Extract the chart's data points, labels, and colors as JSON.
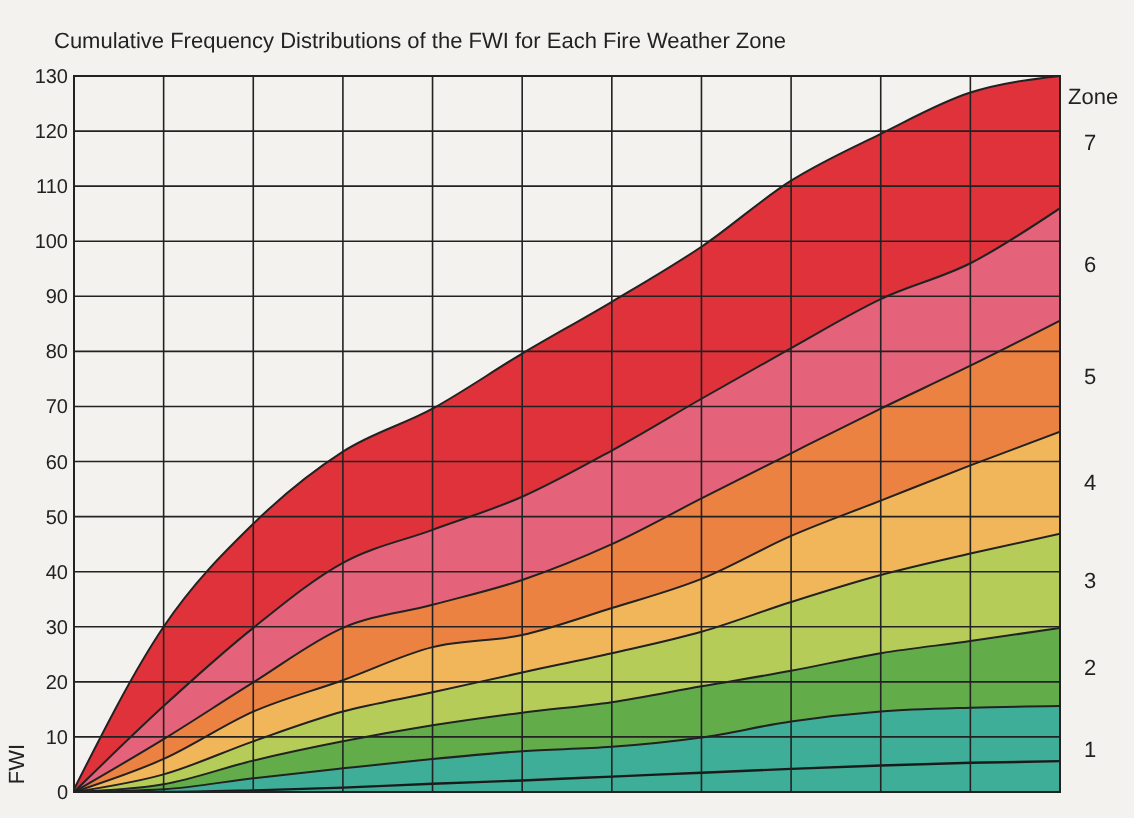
{
  "chart_data": {
    "type": "area",
    "title": "Cumulative Frequency Distributions of the FWI for Each Fire Weather Zone",
    "ylabel": "FWI",
    "legend_title": "Zone",
    "categories": [
      null,
      null,
      null,
      null,
      null,
      null,
      null,
      null,
      null,
      null,
      null,
      null
    ],
    "ylim": [
      0,
      130
    ],
    "yticks": [
      0,
      10,
      20,
      30,
      40,
      50,
      60,
      70,
      80,
      90,
      100,
      110,
      120,
      130
    ],
    "grid": true,
    "series": [
      {
        "name": "1",
        "color": "#3fae98",
        "values": [
          0,
          0.5,
          2.5,
          4.3,
          6,
          7.4,
          8.2,
          9.9,
          12.8,
          14.6,
          15.3,
          15.6
        ]
      },
      {
        "name": "2",
        "color": "#62ad4a",
        "values": [
          0,
          1.4,
          5.7,
          9.2,
          12.1,
          14.4,
          16.3,
          19.2,
          22,
          25.2,
          27.4,
          29.8
        ]
      },
      {
        "name": "3",
        "color": "#b5cd58",
        "values": [
          0,
          3.2,
          9.2,
          14.6,
          18.1,
          21.7,
          25.2,
          29.1,
          34.5,
          39.4,
          43.3,
          46.9
        ]
      },
      {
        "name": "4",
        "color": "#f2b65a",
        "values": [
          0,
          6,
          14.6,
          20.3,
          26.3,
          28.5,
          33.4,
          38.7,
          46.5,
          52.9,
          59.3,
          65.4
        ]
      },
      {
        "name": "5",
        "color": "#ec8242",
        "values": [
          0,
          9.6,
          19.9,
          29.8,
          34,
          38.5,
          45,
          53.3,
          61.5,
          69.6,
          77.4,
          85.6
        ]
      },
      {
        "name": "6",
        "color": "#e5637a",
        "values": [
          0,
          15.6,
          29.8,
          41.6,
          47.6,
          53.6,
          62,
          71.4,
          80.6,
          89.5,
          96,
          106
        ]
      },
      {
        "name": "7",
        "color": "#e0323a",
        "values": [
          0.5,
          30,
          48.7,
          61.8,
          69.6,
          79.6,
          89,
          99,
          111,
          119.5,
          127,
          130
        ]
      },
      {
        "type": "line",
        "color": "#1a1a1a",
        "values": [
          0,
          0,
          0.3,
          0.8,
          1.5,
          2.1,
          2.8,
          3.5,
          4.2,
          4.8,
          5.3,
          5.6
        ]
      }
    ]
  }
}
